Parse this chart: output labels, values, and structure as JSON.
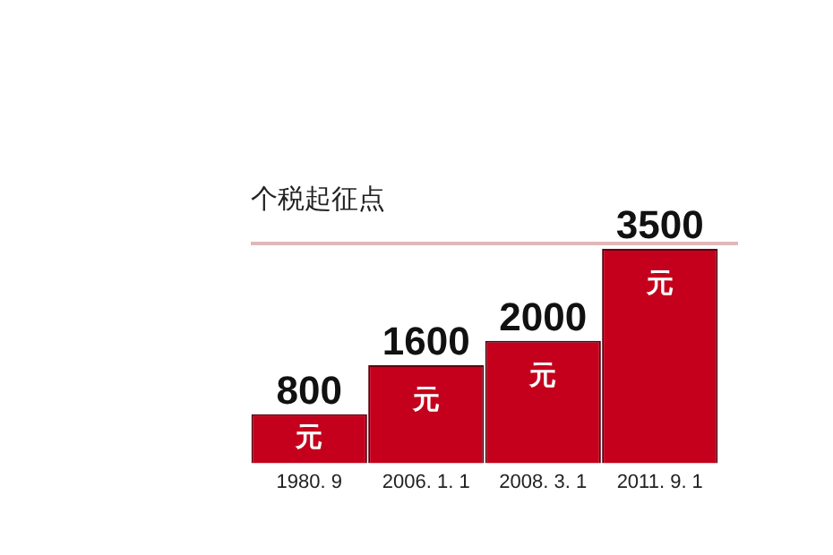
{
  "chart_data": {
    "type": "bar",
    "title": "个税起征点",
    "categories": [
      "1980. 9",
      "2006. 1. 1",
      "2008. 3. 1",
      "2011. 9. 1"
    ],
    "values": [
      800,
      1600,
      2000,
      3500
    ],
    "color": "#c4001c",
    "data_labels": true,
    "grid": false,
    "legend": false,
    "annotations": [
      "元",
      "元",
      "元",
      "元"
    ]
  }
}
